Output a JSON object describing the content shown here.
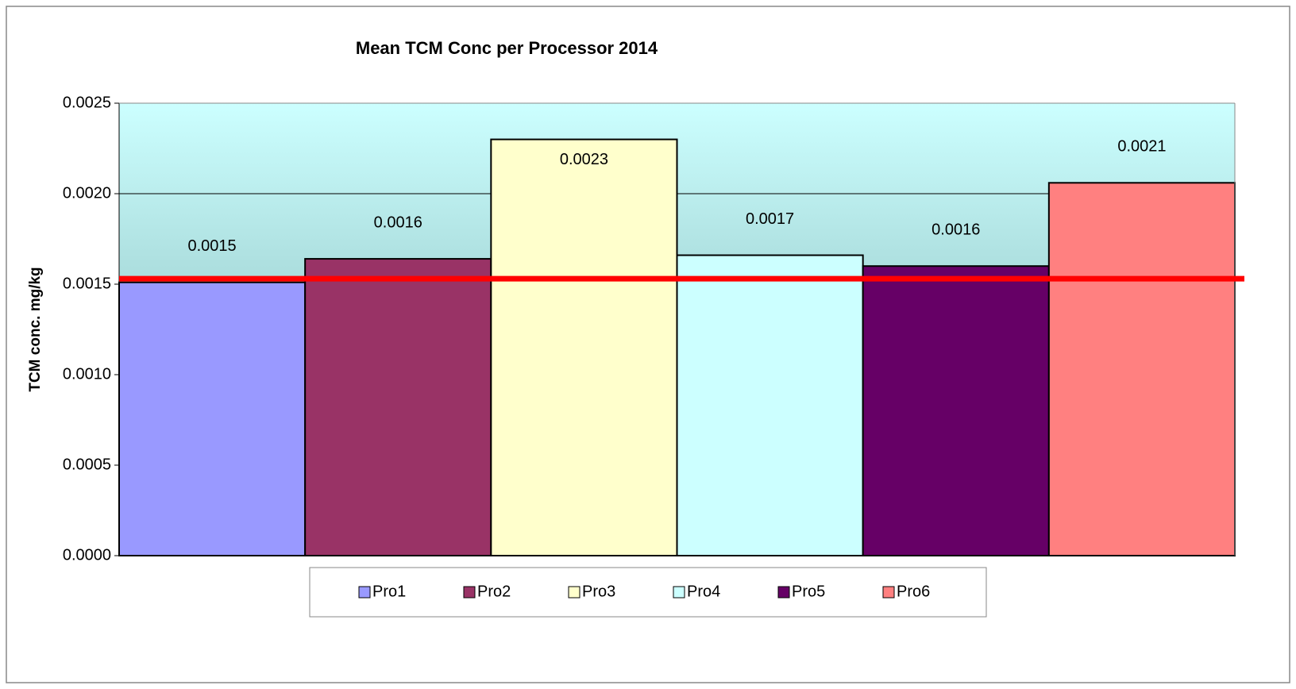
{
  "chart_data": {
    "type": "bar",
    "title": "Mean TCM Conc per Processor 2014",
    "y_label": "TCM conc. mg/kg",
    "categories": [
      null
    ],
    "series": [
      {
        "name": "Pro1",
        "color": "#9999ff",
        "values": [
          0.00151
        ],
        "value_labels": [
          "0.0015"
        ]
      },
      {
        "name": "Pro2",
        "color": "#993366",
        "values": [
          0.00164
        ],
        "value_labels": [
          "0.0016"
        ]
      },
      {
        "name": "Pro3",
        "color": "#ffffcc",
        "values": [
          0.0023
        ],
        "value_labels": [
          "0.0023"
        ]
      },
      {
        "name": "Pro4",
        "color": "#ccffff",
        "values": [
          0.00166
        ],
        "value_labels": [
          "0.0017"
        ]
      },
      {
        "name": "Pro5",
        "color": "#660066",
        "values": [
          0.0016
        ],
        "value_labels": [
          "0.0016"
        ]
      },
      {
        "name": "Pro6",
        "color": "#ff8080",
        "values": [
          0.00206
        ],
        "value_labels": [
          "0.0021"
        ]
      }
    ],
    "reference_line": {
      "value": 0.00153,
      "color": "#ff0000"
    },
    "ylim": [
      0,
      0.0025
    ],
    "yticks": [
      {
        "value": 0,
        "label": "0.0000"
      },
      0.0005,
      {
        "value": 0.001,
        "label": "0.0010"
      },
      0.0015,
      {
        "value": 0.002,
        "label": "0.0020"
      },
      0.0025
    ],
    "grid": true,
    "legend": "bottom"
  }
}
